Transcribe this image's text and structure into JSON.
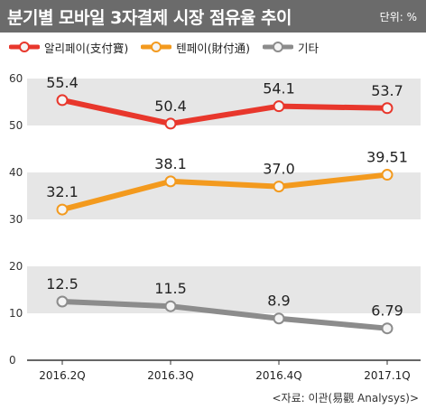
{
  "header": {
    "title": "분기별 모바일 3자결제 시장 점유율 추이",
    "unit": "단위: %"
  },
  "source": "<자료: 이관(易觀 Analysys)>",
  "colors": {
    "header_bg": "#6b6b6b",
    "band": "#e6e6e6",
    "alipay": "#e8372c",
    "tenpay": "#f39a1e",
    "other": "#8c8c8c"
  },
  "chart_data": {
    "type": "line",
    "categories": [
      "2016.2Q",
      "2016.3Q",
      "2016.4Q",
      "2017.1Q"
    ],
    "series": [
      {
        "name": "알리페이(支付寶)",
        "values": [
          55.4,
          50.4,
          54.1,
          53.7
        ],
        "labels": [
          "55.4",
          "50.4",
          "54.1",
          "53.7"
        ],
        "color": "#e8372c"
      },
      {
        "name": "텐페이(財付通)",
        "values": [
          32.1,
          38.1,
          37.0,
          39.51
        ],
        "labels": [
          "32.1",
          "38.1",
          "37.0",
          "39.51"
        ],
        "color": "#f39a1e"
      },
      {
        "name": "기타",
        "values": [
          12.5,
          11.5,
          8.9,
          6.79
        ],
        "labels": [
          "12.5",
          "11.5",
          "8.9",
          "6.79"
        ],
        "color": "#8c8c8c"
      }
    ],
    "yticks": [
      "0",
      "10",
      "20",
      "30",
      "40",
      "50",
      "60"
    ],
    "ylim": [
      0,
      60
    ],
    "legend_position": "top-left"
  }
}
